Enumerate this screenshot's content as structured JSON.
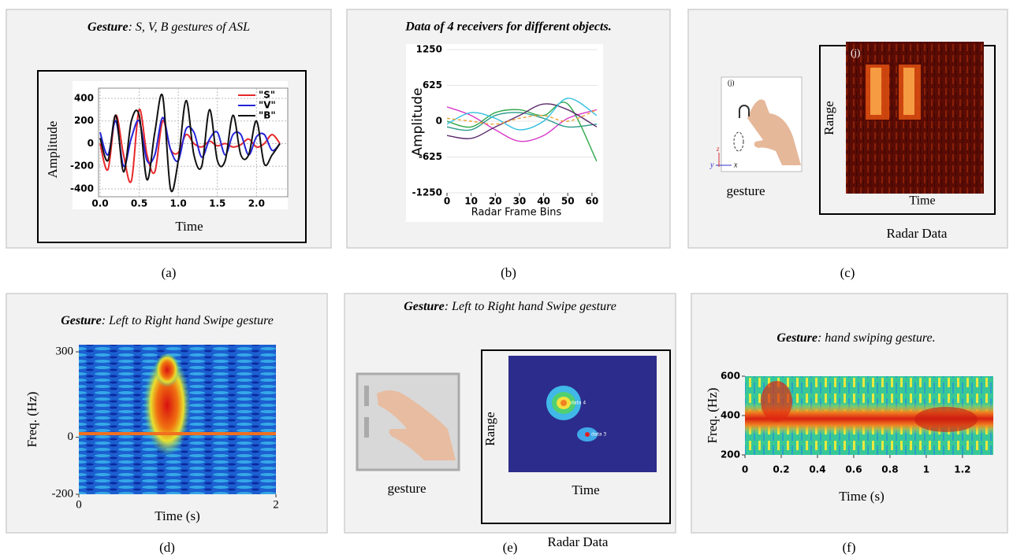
{
  "panels": [
    {
      "caption": "(a)",
      "title_bold": "Gesture",
      "title_rest": ": S, V, B gestures of ASL",
      "chart_data": {
        "type": "line",
        "x_label": "Time",
        "y_label": "Amplitude",
        "x": [
          0,
          0.1,
          0.2,
          0.3,
          0.4,
          0.5,
          0.6,
          0.7,
          0.8,
          0.9,
          1.0,
          1.1,
          1.2,
          1.3,
          1.4,
          1.5,
          1.6,
          1.7,
          1.8,
          1.9,
          2.0,
          2.1,
          2.2,
          2.3
        ],
        "series": [
          {
            "name": "\"S\"",
            "color": "#e8282a",
            "values": [
              0,
              -230,
              250,
              -100,
              -330,
              300,
              -100,
              -250,
              200,
              -50,
              -80,
              80,
              0,
              -30,
              20,
              -20,
              0,
              -30,
              -10,
              40,
              -30,
              0,
              80,
              0
            ]
          },
          {
            "name": "\"V\"",
            "color": "#2424d8",
            "values": [
              100,
              -100,
              200,
              -200,
              50,
              200,
              -150,
              -100,
              230,
              -50,
              -150,
              130,
              100,
              -120,
              40,
              100,
              -100,
              80,
              80,
              -100,
              60,
              80,
              -60,
              0
            ]
          },
          {
            "name": "\"B\"",
            "color": "#111111",
            "values": [
              50,
              -150,
              250,
              -250,
              200,
              250,
              -320,
              100,
              420,
              -400,
              -150,
              380,
              -100,
              -200,
              300,
              -150,
              -150,
              250,
              -100,
              -100,
              200,
              -180,
              -100,
              0
            ]
          }
        ],
        "xlim": [
          -0.02,
          2.4
        ],
        "ylim": [
          -470,
          490
        ],
        "xticks": [
          {
            "value": 0,
            "label": "0.0"
          },
          0.5,
          {
            "value": 1,
            "label": "1.0"
          },
          1.5,
          {
            "value": 2,
            "label": "2.0"
          }
        ],
        "yticks": [
          -400,
          -200,
          0,
          200,
          400
        ],
        "grid": true
      }
    },
    {
      "caption": "(b)",
      "title": "Data of 4 receivers for different objects.",
      "chart_data": {
        "type": "line",
        "x_label": "Radar Frame Bins",
        "y_label": "Amplitude",
        "x": [
          0,
          10,
          20,
          30,
          40,
          50,
          62
        ],
        "series": [
          {
            "color": "#d838c8",
            "values": [
              250,
              100,
              -150,
              -350,
              -250,
              50,
              200
            ]
          },
          {
            "color": "#2a9a8a",
            "values": [
              -100,
              -150,
              100,
              150,
              50,
              -100,
              -50
            ]
          },
          {
            "color": "#2fa84a",
            "values": [
              0,
              -100,
              150,
              200,
              100,
              300,
              -700
            ]
          },
          {
            "color": "#5a2a6a",
            "values": [
              -250,
              -300,
              -100,
              100,
              300,
              200,
              -100
            ]
          },
          {
            "color": "#33c0e0",
            "values": [
              -50,
              150,
              50,
              -150,
              0,
              400,
              100
            ]
          },
          {
            "color": "#f0a030",
            "values": [
              50,
              0,
              -50,
              50,
              100,
              0,
              200
            ]
          }
        ],
        "xlim": [
          0,
          62
        ],
        "ylim": [
          -1250,
          1250
        ],
        "xticks": [
          0,
          10,
          20,
          30,
          40,
          50,
          60
        ],
        "yticks": [
          -1250,
          -625,
          0,
          625,
          1250
        ],
        "grid": true
      }
    },
    {
      "caption": "(c)",
      "image_label": "gesture",
      "image_tag": "(j)",
      "axis_x": "x",
      "axis_y": "y",
      "axis_z": "z",
      "radar_label": "Radar Data",
      "radar_tag": "(j)",
      "radar_x_label": "Time",
      "radar_y_label": "Range"
    },
    {
      "caption": "(d)",
      "title_bold": "Gesture",
      "title_rest": ": Left to Right hand Swipe gesture",
      "chart_data": {
        "type": "spectrogram",
        "x_label": "Time (s)",
        "y_label": "Freq. (Hz)",
        "xlim": [
          0,
          2
        ],
        "ylim": [
          -200,
          325
        ],
        "xticks": [
          0,
          2
        ],
        "yticks": [
          -200,
          0,
          300
        ],
        "grid": false
      }
    },
    {
      "caption": "(e)",
      "title_bold": "Gesture",
      "title_rest": ": Left to Right hand Swipe gesture",
      "image_label": "gesture",
      "radar_label": "Radar Data",
      "radar_x_label": "Time",
      "radar_y_label": "Range",
      "point_labels": [
        "data 4",
        "data 3"
      ]
    },
    {
      "caption": "(f)",
      "title_bold": "Gesture",
      "title_rest": ": hand swiping gesture.",
      "chart_data": {
        "type": "spectrogram",
        "x_label": "Time (s)",
        "y_label": "Freq. (Hz)",
        "xlim": [
          0,
          1.37
        ],
        "ylim": [
          200,
          600
        ],
        "xticks": [
          0,
          0.2,
          0.4,
          0.6,
          0.8,
          1,
          1.2
        ],
        "yticks": [
          200,
          400,
          600
        ],
        "grid": false
      }
    }
  ]
}
